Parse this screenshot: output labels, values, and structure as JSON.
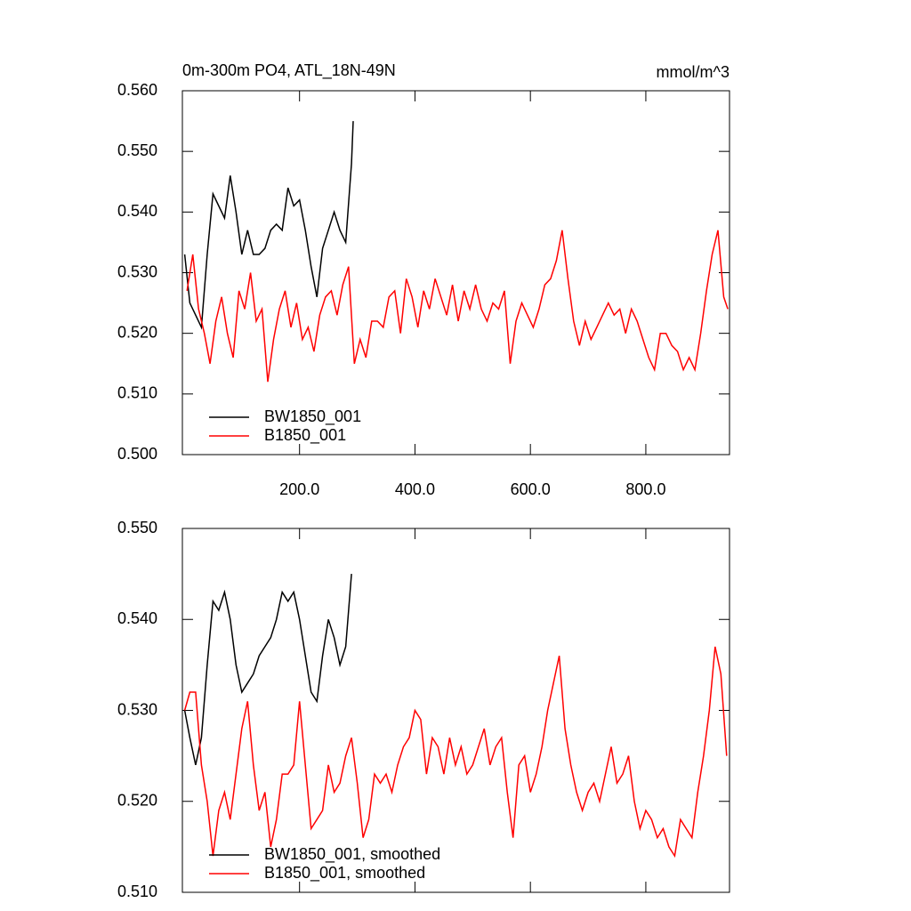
{
  "chart_data": [
    {
      "type": "line",
      "title": "0m-300m PO4, ATL_18N-49N",
      "subtitle": "mmol/m^3",
      "xlim": [
        -3,
        945
      ],
      "ylim": [
        0.5,
        0.56
      ],
      "xticks": [
        {
          "value": 200,
          "label": "200.0"
        },
        {
          "value": 400,
          "label": "400.0"
        },
        {
          "value": 600,
          "label": "600.0"
        },
        {
          "value": 800,
          "label": "800.0"
        }
      ],
      "yticks": [
        {
          "value": 0.5,
          "label": "0.500"
        },
        {
          "value": 0.51,
          "label": "0.510"
        },
        {
          "value": 0.52,
          "label": "0.520"
        },
        {
          "value": 0.53,
          "label": "0.530"
        },
        {
          "value": 0.54,
          "label": "0.540"
        },
        {
          "value": 0.55,
          "label": "0.550"
        },
        {
          "value": 0.56,
          "label": "0.560"
        }
      ],
      "series": [
        {
          "name": "BW1850_001",
          "color": "#000000",
          "x": [
            1,
            10,
            20,
            30,
            40,
            50,
            60,
            70,
            80,
            90,
            100,
            110,
            120,
            130,
            140,
            150,
            160,
            170,
            180,
            190,
            200,
            210,
            220,
            230,
            240,
            250,
            260,
            270,
            280,
            290,
            293
          ],
          "values": [
            0.533,
            0.525,
            0.523,
            0.521,
            0.533,
            0.543,
            0.541,
            0.539,
            0.546,
            0.54,
            0.533,
            0.537,
            0.533,
            0.533,
            0.534,
            0.537,
            0.538,
            0.537,
            0.544,
            0.541,
            0.542,
            0.537,
            0.531,
            0.526,
            0.534,
            0.537,
            0.54,
            0.537,
            0.535,
            0.548,
            0.555
          ]
        },
        {
          "name": "B1850_001",
          "color": "#ff0000",
          "x": [
            5,
            15,
            25,
            35,
            45,
            55,
            65,
            75,
            85,
            95,
            105,
            115,
            125,
            135,
            145,
            155,
            165,
            175,
            185,
            195,
            205,
            215,
            225,
            235,
            245,
            255,
            265,
            275,
            285,
            295,
            305,
            315,
            325,
            335,
            345,
            355,
            365,
            375,
            385,
            395,
            405,
            415,
            425,
            435,
            445,
            455,
            465,
            475,
            485,
            495,
            505,
            515,
            525,
            535,
            545,
            555,
            565,
            575,
            585,
            595,
            605,
            615,
            625,
            635,
            645,
            655,
            665,
            675,
            685,
            695,
            705,
            715,
            725,
            735,
            745,
            755,
            765,
            775,
            785,
            795,
            805,
            815,
            825,
            835,
            845,
            855,
            865,
            875,
            885,
            895,
            905,
            915,
            925,
            935,
            942
          ],
          "values": [
            0.527,
            0.533,
            0.524,
            0.52,
            0.515,
            0.522,
            0.526,
            0.52,
            0.516,
            0.527,
            0.524,
            0.53,
            0.522,
            0.524,
            0.512,
            0.519,
            0.524,
            0.527,
            0.521,
            0.525,
            0.519,
            0.521,
            0.517,
            0.523,
            0.526,
            0.527,
            0.523,
            0.528,
            0.531,
            0.515,
            0.519,
            0.516,
            0.522,
            0.522,
            0.521,
            0.526,
            0.527,
            0.52,
            0.529,
            0.526,
            0.521,
            0.527,
            0.524,
            0.529,
            0.526,
            0.523,
            0.528,
            0.522,
            0.527,
            0.524,
            0.528,
            0.524,
            0.522,
            0.525,
            0.524,
            0.527,
            0.515,
            0.522,
            0.525,
            0.523,
            0.521,
            0.524,
            0.528,
            0.529,
            0.532,
            0.537,
            0.529,
            0.522,
            0.518,
            0.522,
            0.519,
            0.521,
            0.523,
            0.525,
            0.523,
            0.524,
            0.52,
            0.524,
            0.522,
            0.519,
            0.516,
            0.514,
            0.52,
            0.52,
            0.518,
            0.517,
            0.514,
            0.516,
            0.514,
            0.52,
            0.527,
            0.533,
            0.537,
            0.526,
            0.524
          ]
        }
      ]
    },
    {
      "type": "line",
      "xlim": [
        -3,
        945
      ],
      "ylim": [
        0.51,
        0.55
      ],
      "yticks": [
        {
          "value": 0.51,
          "label": "0.510"
        },
        {
          "value": 0.52,
          "label": "0.520"
        },
        {
          "value": 0.53,
          "label": "0.530"
        },
        {
          "value": 0.54,
          "label": "0.540"
        },
        {
          "value": 0.55,
          "label": "0.550"
        }
      ],
      "series": [
        {
          "name": "BW1850_001, smoothed",
          "color": "#000000",
          "x": [
            1,
            10,
            20,
            30,
            40,
            50,
            60,
            70,
            80,
            90,
            100,
            110,
            120,
            130,
            140,
            150,
            160,
            170,
            180,
            190,
            200,
            210,
            220,
            230,
            240,
            250,
            260,
            270,
            280,
            290
          ],
          "values": [
            0.53,
            0.527,
            0.524,
            0.527,
            0.535,
            0.542,
            0.541,
            0.543,
            0.54,
            0.535,
            0.532,
            0.533,
            0.534,
            0.536,
            0.537,
            0.538,
            0.54,
            0.543,
            0.542,
            0.543,
            0.54,
            0.536,
            0.532,
            0.531,
            0.536,
            0.54,
            0.538,
            0.535,
            0.537,
            0.545
          ]
        },
        {
          "name": "B1850_001, smoothed",
          "color": "#ff0000",
          "x": [
            1,
            10,
            20,
            30,
            40,
            50,
            60,
            70,
            80,
            90,
            100,
            110,
            120,
            130,
            140,
            150,
            160,
            170,
            180,
            190,
            200,
            210,
            220,
            230,
            240,
            250,
            260,
            270,
            280,
            290,
            300,
            310,
            320,
            330,
            340,
            350,
            360,
            370,
            380,
            390,
            400,
            410,
            420,
            430,
            440,
            450,
            460,
            470,
            480,
            490,
            500,
            510,
            520,
            530,
            540,
            550,
            560,
            570,
            580,
            590,
            600,
            610,
            620,
            630,
            640,
            650,
            660,
            670,
            680,
            690,
            700,
            710,
            720,
            730,
            740,
            750,
            760,
            770,
            780,
            790,
            800,
            810,
            820,
            830,
            840,
            850,
            860,
            870,
            880,
            890,
            900,
            910,
            920,
            930,
            940
          ],
          "values": [
            0.53,
            0.532,
            0.532,
            0.524,
            0.52,
            0.514,
            0.519,
            0.521,
            0.518,
            0.523,
            0.528,
            0.531,
            0.524,
            0.519,
            0.521,
            0.515,
            0.518,
            0.523,
            0.523,
            0.524,
            0.531,
            0.524,
            0.517,
            0.518,
            0.519,
            0.524,
            0.521,
            0.522,
            0.525,
            0.527,
            0.522,
            0.516,
            0.518,
            0.523,
            0.522,
            0.523,
            0.521,
            0.524,
            0.526,
            0.527,
            0.53,
            0.529,
            0.523,
            0.527,
            0.526,
            0.523,
            0.527,
            0.524,
            0.526,
            0.523,
            0.524,
            0.526,
            0.528,
            0.524,
            0.526,
            0.527,
            0.521,
            0.516,
            0.524,
            0.525,
            0.521,
            0.523,
            0.526,
            0.53,
            0.533,
            0.536,
            0.528,
            0.524,
            0.521,
            0.519,
            0.521,
            0.522,
            0.52,
            0.523,
            0.526,
            0.522,
            0.523,
            0.525,
            0.52,
            0.517,
            0.519,
            0.518,
            0.516,
            0.517,
            0.515,
            0.514,
            0.518,
            0.517,
            0.516,
            0.521,
            0.525,
            0.53,
            0.537,
            0.534,
            0.525
          ]
        }
      ]
    }
  ]
}
